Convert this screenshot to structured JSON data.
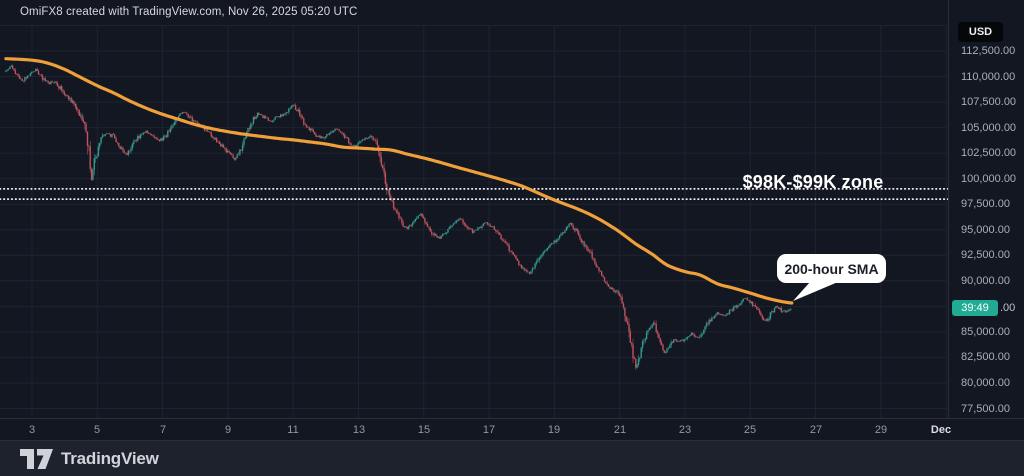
{
  "header": {
    "attribution": "OmiFX8 created with TradingView.com, Nov 26, 2025 05:20 UTC"
  },
  "price_scale": {
    "currency_button": "USD",
    "labels": [
      {
        "text": "112,500.00",
        "price": 112500
      },
      {
        "text": "110,000.00",
        "price": 110000
      },
      {
        "text": "107,500.00",
        "price": 107500
      },
      {
        "text": "105,000.00",
        "price": 105000
      },
      {
        "text": "102,500.00",
        "price": 102500
      },
      {
        "text": "100,000.00",
        "price": 100000
      },
      {
        "text": "97,500.00",
        "price": 97500
      },
      {
        "text": "95,000.00",
        "price": 95000
      },
      {
        "text": "92,500.00",
        "price": 92500
      },
      {
        "text": "90,000.00",
        "price": 90000
      },
      {
        "text": "85,000.00",
        "price": 85000
      },
      {
        "text": "82,500.00",
        "price": 82500
      },
      {
        "text": "80,000.00",
        "price": 80000
      },
      {
        "text": "77,500.00",
        "price": 77500
      }
    ],
    "countdown_badge": "39:49",
    "last_price_visible_suffix": ".00",
    "last_price": 87300
  },
  "time_scale": {
    "labels": [
      {
        "text": "3",
        "day": 3
      },
      {
        "text": "5",
        "day": 5
      },
      {
        "text": "7",
        "day": 7
      },
      {
        "text": "9",
        "day": 9
      },
      {
        "text": "11",
        "day": 11
      },
      {
        "text": "13",
        "day": 13
      },
      {
        "text": "15",
        "day": 15
      },
      {
        "text": "17",
        "day": 17
      },
      {
        "text": "19",
        "day": 19
      },
      {
        "text": "21",
        "day": 21
      },
      {
        "text": "23",
        "day": 23
      },
      {
        "text": "25",
        "day": 25
      },
      {
        "text": "27",
        "day": 27
      },
      {
        "text": "29",
        "day": 29
      },
      {
        "text": "Dec",
        "day": 31,
        "bold": true
      }
    ]
  },
  "annotations": {
    "zone_label": "$98K-$99K zone",
    "zone_upper_price": 99000,
    "zone_lower_price": 98000,
    "sma_callout_label": "200-hour SMA",
    "sma_callout_target": [
      793,
      301
    ]
  },
  "footer": {
    "brand": "TradingView"
  },
  "colors": {
    "background": "#131722",
    "grid": "#1e2331",
    "candle_up": "#339a8d",
    "candle_down": "#c2535f",
    "sma_line": "#efa03a",
    "zone_dots": "#f2f2f2",
    "badge": "#22ab94",
    "axis_text": "#a9aeb8"
  },
  "chart_data": {
    "type": "candlestick",
    "title": "BTC/USD hourly with 200-hour SMA (values in USD)",
    "interval": "1h",
    "x_unit": "day of November 2025",
    "x_range": [
      2.2,
      26.25
    ],
    "price_axis": {
      "min": 77500,
      "max": 112500,
      "step": 2500
    },
    "grid": true,
    "key_points": {
      "start_price": 110800,
      "nov5_flash_low": 99200,
      "nov21_capitulation_low": 80500,
      "last_price": 87300,
      "sma_end_value": 87830
    },
    "price_path": [
      [
        2.2,
        110600
      ],
      [
        2.35,
        111000
      ],
      [
        2.5,
        110300
      ],
      [
        2.7,
        109500
      ],
      [
        2.85,
        110100
      ],
      [
        3.0,
        110450
      ],
      [
        3.15,
        110650
      ],
      [
        3.3,
        109900
      ],
      [
        3.5,
        109300
      ],
      [
        3.7,
        109550
      ],
      [
        3.9,
        108700
      ],
      [
        4.1,
        107900
      ],
      [
        4.3,
        107300
      ],
      [
        4.5,
        106000
      ],
      [
        4.65,
        104800
      ],
      [
        4.75,
        102500
      ],
      [
        4.82,
        99700
      ],
      [
        4.9,
        101800
      ],
      [
        5.0,
        102600
      ],
      [
        5.1,
        103900
      ],
      [
        5.3,
        104400
      ],
      [
        5.5,
        104100
      ],
      [
        5.7,
        103100
      ],
      [
        5.9,
        102400
      ],
      [
        6.1,
        103500
      ],
      [
        6.3,
        104200
      ],
      [
        6.5,
        104600
      ],
      [
        6.7,
        104100
      ],
      [
        6.9,
        103700
      ],
      [
        7.1,
        104200
      ],
      [
        7.3,
        105300
      ],
      [
        7.5,
        106300
      ],
      [
        7.65,
        106500
      ],
      [
        7.9,
        105800
      ],
      [
        8.1,
        105300
      ],
      [
        8.4,
        104600
      ],
      [
        8.7,
        103600
      ],
      [
        9.0,
        102600
      ],
      [
        9.2,
        101900
      ],
      [
        9.35,
        102400
      ],
      [
        9.5,
        103900
      ],
      [
        9.7,
        105400
      ],
      [
        9.9,
        106400
      ],
      [
        10.1,
        106000
      ],
      [
        10.3,
        105500
      ],
      [
        10.5,
        106100
      ],
      [
        10.7,
        106300
      ],
      [
        10.9,
        106800
      ],
      [
        11.0,
        107200
      ],
      [
        11.15,
        106600
      ],
      [
        11.3,
        105600
      ],
      [
        11.5,
        104900
      ],
      [
        11.7,
        104200
      ],
      [
        11.9,
        104000
      ],
      [
        12.1,
        104400
      ],
      [
        12.3,
        104800
      ],
      [
        12.5,
        104400
      ],
      [
        12.7,
        103600
      ],
      [
        12.9,
        103100
      ],
      [
        13.1,
        103700
      ],
      [
        13.35,
        104200
      ],
      [
        13.55,
        103400
      ],
      [
        13.7,
        101600
      ],
      [
        13.85,
        99200
      ],
      [
        14.0,
        97800
      ],
      [
        14.15,
        96900
      ],
      [
        14.3,
        95700
      ],
      [
        14.5,
        95100
      ],
      [
        14.7,
        96000
      ],
      [
        14.9,
        96500
      ],
      [
        15.1,
        95600
      ],
      [
        15.3,
        94500
      ],
      [
        15.5,
        94100
      ],
      [
        15.7,
        94900
      ],
      [
        15.9,
        95600
      ],
      [
        16.1,
        96100
      ],
      [
        16.3,
        95400
      ],
      [
        16.5,
        94800
      ],
      [
        16.7,
        95200
      ],
      [
        16.9,
        95700
      ],
      [
        17.1,
        95300
      ],
      [
        17.3,
        94500
      ],
      [
        17.5,
        93700
      ],
      [
        17.7,
        92600
      ],
      [
        17.9,
        91800
      ],
      [
        18.1,
        91000
      ],
      [
        18.25,
        90600
      ],
      [
        18.45,
        91900
      ],
      [
        18.65,
        92900
      ],
      [
        18.85,
        93400
      ],
      [
        19.1,
        94100
      ],
      [
        19.3,
        94900
      ],
      [
        19.5,
        95600
      ],
      [
        19.7,
        94700
      ],
      [
        19.9,
        93600
      ],
      [
        20.1,
        92700
      ],
      [
        20.3,
        91500
      ],
      [
        20.5,
        90300
      ],
      [
        20.7,
        89300
      ],
      [
        20.9,
        88900
      ],
      [
        21.05,
        88200
      ],
      [
        21.2,
        86300
      ],
      [
        21.35,
        84000
      ],
      [
        21.5,
        81200
      ],
      [
        21.6,
        82600
      ],
      [
        21.75,
        84300
      ],
      [
        21.9,
        85300
      ],
      [
        22.05,
        85900
      ],
      [
        22.2,
        84200
      ],
      [
        22.35,
        82900
      ],
      [
        22.5,
        83400
      ],
      [
        22.65,
        84300
      ],
      [
        22.8,
        84000
      ],
      [
        23.0,
        84300
      ],
      [
        23.2,
        84900
      ],
      [
        23.4,
        84400
      ],
      [
        23.6,
        85300
      ],
      [
        23.8,
        86300
      ],
      [
        24.0,
        86900
      ],
      [
        24.2,
        86500
      ],
      [
        24.4,
        87100
      ],
      [
        24.6,
        87600
      ],
      [
        24.8,
        88300
      ],
      [
        25.0,
        87900
      ],
      [
        25.2,
        87200
      ],
      [
        25.35,
        86400
      ],
      [
        25.5,
        86100
      ],
      [
        25.65,
        86900
      ],
      [
        25.8,
        87600
      ],
      [
        25.95,
        87100
      ],
      [
        26.1,
        86900
      ],
      [
        26.25,
        87300
      ]
    ],
    "sma_path": [
      [
        2.2,
        111750
      ],
      [
        3.0,
        111600
      ],
      [
        3.5,
        111300
      ],
      [
        4.0,
        110700
      ],
      [
        4.5,
        109900
      ],
      [
        5.0,
        109100
      ],
      [
        5.5,
        108400
      ],
      [
        6.0,
        107600
      ],
      [
        6.5,
        106900
      ],
      [
        7.0,
        106300
      ],
      [
        7.5,
        105800
      ],
      [
        8.0,
        105300
      ],
      [
        8.5,
        104900
      ],
      [
        9.0,
        104600
      ],
      [
        9.5,
        104350
      ],
      [
        10.0,
        104150
      ],
      [
        10.5,
        103950
      ],
      [
        11.0,
        103800
      ],
      [
        11.5,
        103600
      ],
      [
        12.0,
        103400
      ],
      [
        12.5,
        103100
      ],
      [
        13.0,
        103000
      ],
      [
        13.5,
        102900
      ],
      [
        14.0,
        102800
      ],
      [
        14.5,
        102400
      ],
      [
        15.0,
        102020
      ],
      [
        15.5,
        101600
      ],
      [
        16.0,
        101140
      ],
      [
        16.5,
        100700
      ],
      [
        17.0,
        100260
      ],
      [
        17.5,
        99800
      ],
      [
        18.0,
        99280
      ],
      [
        18.5,
        98600
      ],
      [
        19.0,
        97910
      ],
      [
        19.5,
        97300
      ],
      [
        20.0,
        96640
      ],
      [
        20.5,
        95800
      ],
      [
        21.0,
        94780
      ],
      [
        21.5,
        93600
      ],
      [
        22.0,
        92600
      ],
      [
        22.45,
        91550
      ],
      [
        23.0,
        90900
      ],
      [
        23.46,
        90570
      ],
      [
        24.0,
        89700
      ],
      [
        24.47,
        89300
      ],
      [
        25.0,
        88800
      ],
      [
        25.5,
        88310
      ],
      [
        26.0,
        87950
      ],
      [
        26.27,
        87830
      ]
    ]
  }
}
